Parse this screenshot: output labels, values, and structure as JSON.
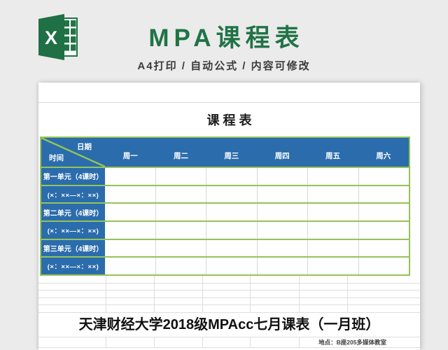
{
  "colors": {
    "brand_green": "#217346",
    "table_blue": "#2b6cad",
    "border_green": "#95c358"
  },
  "header": {
    "title": "MPA课程表",
    "subtitle": "A4打印 / 自动公式 / 内容可修改"
  },
  "sheet": {
    "title": "课 程 表",
    "schedule_table": {
      "corner": {
        "date_label": "日期",
        "time_label": "时间"
      },
      "day_headers": [
        "周一",
        "周二",
        "周三",
        "周四",
        "周五",
        "周六"
      ],
      "rows": [
        {
          "type": "unit",
          "label": "第一单元（4课时）",
          "cells": [
            "",
            "",
            "",
            "",
            "",
            ""
          ]
        },
        {
          "type": "time",
          "label": "(×：××—×：××)",
          "cells": [
            "",
            "",
            "",
            "",
            "",
            ""
          ]
        },
        {
          "type": "unit",
          "label": "第二单元（4课时）",
          "cells": [
            "",
            "",
            "",
            "",
            "",
            ""
          ]
        },
        {
          "type": "time",
          "label": "(×：××—×：××)",
          "cells": [
            "",
            "",
            "",
            "",
            "",
            ""
          ]
        },
        {
          "type": "unit",
          "label": "第三单元（4课时）",
          "cells": [
            "",
            "",
            "",
            "",
            "",
            ""
          ]
        },
        {
          "type": "time",
          "label": "(×：××—×：××)",
          "cells": [
            "",
            "",
            "",
            "",
            "",
            ""
          ]
        }
      ]
    },
    "footer_title": "天津财经大学2018级MPAcc七月课表（一月班）",
    "location_note": "地点：B座205多媒体教室"
  }
}
